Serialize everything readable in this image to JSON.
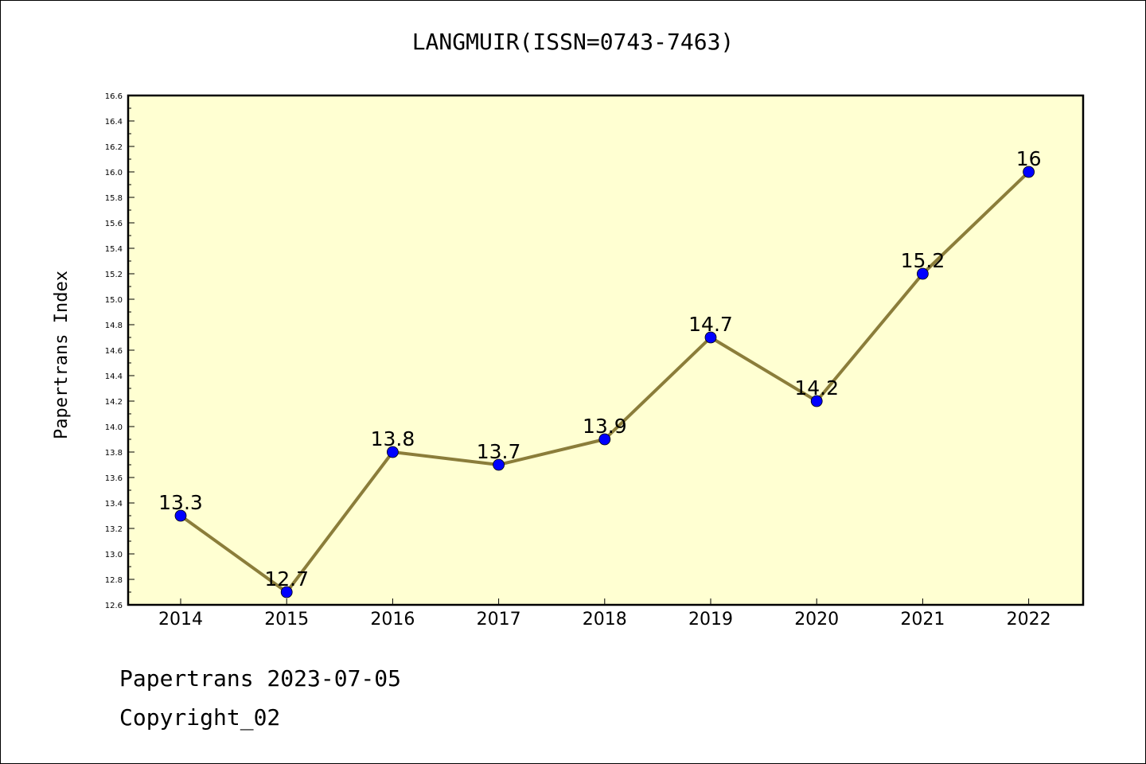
{
  "title": "LANGMUIR(ISSN=0743-7463)",
  "footer": {
    "date_line": "Papertrans 2023-07-05",
    "copyright": "Copyright_02"
  },
  "chart_data": {
    "type": "line",
    "title": "LANGMUIR(ISSN=0743-7463)",
    "xlabel": "",
    "ylabel": "Papertrans Index",
    "categories": [
      "2014",
      "2015",
      "2016",
      "2017",
      "2018",
      "2019",
      "2020",
      "2021",
      "2022"
    ],
    "values": [
      13.3,
      12.7,
      13.8,
      13.7,
      13.9,
      14.7,
      14.2,
      15.2,
      16.0
    ],
    "data_labels": [
      "13.3",
      "12.7",
      "13.8",
      "13.7",
      "13.9",
      "14.7",
      "14.2",
      "15.2",
      "16"
    ],
    "ylim": [
      12.6,
      16.6
    ],
    "yticks": [
      "12.6",
      "12.8",
      "13.0",
      "13.2",
      "13.4",
      "13.6",
      "13.8",
      "14.0",
      "14.2",
      "14.4",
      "14.6",
      "14.8",
      "15.0",
      "15.2",
      "15.4",
      "15.6",
      "15.8",
      "16.0",
      "16.2",
      "16.4",
      "16.6"
    ],
    "grid": false,
    "colors": {
      "plot_background": "#ffffd2",
      "line": "#8b7d3a",
      "marker": "#0000ff"
    }
  }
}
